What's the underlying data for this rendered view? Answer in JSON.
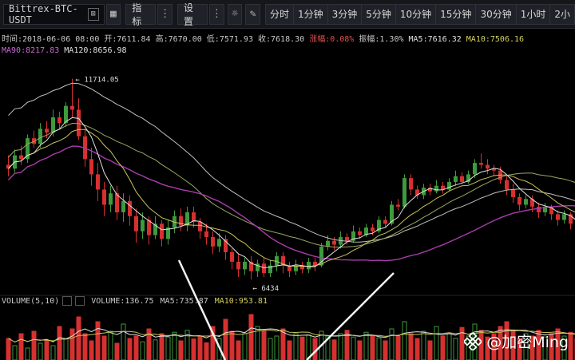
{
  "toolbar": {
    "symbol": "Bittrex-BTC-USDT",
    "indicator_label": "指标",
    "settings_label": "设置",
    "timeframes": [
      "分时",
      "1分钟",
      "3分钟",
      "5分钟",
      "10分钟",
      "15分钟",
      "30分钟",
      "1小时",
      "2小"
    ]
  },
  "info": {
    "time": "时间:2018-06-06 08:00",
    "open": "开:7611.84",
    "high": "高:7670.00",
    "low": "低:7571.93",
    "close": "收:7618.30",
    "change": "涨幅:0.08%",
    "amplitude": "振幅:1.30%",
    "ma5": "MA5:7616.32",
    "ma10": "MA10:7506.16",
    "ma90": "MA90:8217.83",
    "ma120": "MA120:8656.98"
  },
  "chart_data": {
    "type": "candlestick",
    "high_label": "11714.05",
    "low_label": "6434",
    "candles": [
      [
        9450,
        9350,
        9700,
        9150
      ],
      [
        9350,
        9700,
        9850,
        9250
      ],
      [
        9700,
        9600,
        9950,
        9450
      ],
      [
        9600,
        10150,
        10250,
        9500
      ],
      [
        10150,
        10000,
        10350,
        9900
      ],
      [
        10000,
        10400,
        10550,
        9900
      ],
      [
        10400,
        10300,
        10600,
        10150
      ],
      [
        10300,
        10700,
        10900,
        10200
      ],
      [
        10700,
        10550,
        10850,
        10400
      ],
      [
        10550,
        11000,
        11100,
        10450
      ],
      [
        11000,
        10900,
        11714,
        10700
      ],
      [
        10900,
        10200,
        11200,
        10100
      ],
      [
        10200,
        9600,
        10400,
        9400
      ],
      [
        9600,
        9200,
        9900,
        8900
      ],
      [
        9200,
        8800,
        9500,
        8500
      ],
      [
        8800,
        8400,
        9000,
        8100
      ],
      [
        8400,
        8700,
        8900,
        8200
      ],
      [
        8700,
        8200,
        8900,
        8000
      ],
      [
        8200,
        8500,
        8700,
        7950
      ],
      [
        8500,
        8100,
        8650,
        7850
      ],
      [
        8100,
        7700,
        8300,
        7400
      ],
      [
        7700,
        8000,
        8200,
        7500
      ],
      [
        8000,
        7600,
        8100,
        7350
      ],
      [
        7600,
        7900,
        8100,
        7500
      ],
      [
        7900,
        7500,
        8000,
        7300
      ],
      [
        7500,
        7800,
        8000,
        7350
      ],
      [
        7800,
        8100,
        8250,
        7650
      ],
      [
        8100,
        7850,
        8300,
        7700
      ],
      [
        7850,
        8200,
        8350,
        7700
      ],
      [
        8200,
        7950,
        8350,
        7800
      ],
      [
        7950,
        7700,
        8050,
        7500
      ],
      [
        7700,
        7550,
        7900,
        7350
      ],
      [
        7550,
        7300,
        7700,
        7100
      ],
      [
        7300,
        7500,
        7650,
        7150
      ],
      [
        7500,
        7150,
        7600,
        6950
      ],
      [
        7150,
        6900,
        7250,
        6700
      ],
      [
        6900,
        6700,
        7100,
        6500
      ],
      [
        6700,
        6900,
        7000,
        6550
      ],
      [
        6900,
        6650,
        7050,
        6434
      ],
      [
        6650,
        6850,
        6950,
        6500
      ],
      [
        6850,
        6600,
        7000,
        6500
      ],
      [
        6600,
        6800,
        6950,
        6500
      ],
      [
        6800,
        7050,
        7150,
        6650
      ],
      [
        7050,
        6800,
        7150,
        6600
      ],
      [
        6800,
        6650,
        6900,
        6500
      ],
      [
        6650,
        6800,
        6950,
        6550
      ],
      [
        6800,
        6700,
        6900,
        6600
      ],
      [
        6700,
        6900,
        7000,
        6600
      ],
      [
        6900,
        6800,
        7000,
        6650
      ],
      [
        6800,
        7300,
        7400,
        6750
      ],
      [
        7300,
        7450,
        7600,
        7200
      ],
      [
        7450,
        7350,
        7550,
        7200
      ],
      [
        7350,
        7550,
        7700,
        7250
      ],
      [
        7550,
        7450,
        7650,
        7350
      ],
      [
        7450,
        7700,
        7850,
        7400
      ],
      [
        7700,
        7600,
        7800,
        7500
      ],
      [
        7600,
        7800,
        7900,
        7550
      ],
      [
        7800,
        7700,
        7900,
        7600
      ],
      [
        7700,
        8000,
        8100,
        7650
      ],
      [
        8000,
        7900,
        8100,
        7800
      ],
      [
        7900,
        8400,
        8500,
        7850
      ],
      [
        8400,
        8350,
        8550,
        8250
      ],
      [
        8350,
        9100,
        9200,
        8300
      ],
      [
        9100,
        8800,
        9200,
        8650
      ],
      [
        8800,
        8650,
        8900,
        8550
      ],
      [
        8650,
        8850,
        8950,
        8550
      ],
      [
        8850,
        8750,
        8950,
        8650
      ],
      [
        8750,
        8900,
        9050,
        8700
      ],
      [
        8900,
        8800,
        9000,
        8700
      ],
      [
        8800,
        9000,
        9100,
        8750
      ],
      [
        9000,
        9150,
        9300,
        8900
      ],
      [
        9150,
        9000,
        9250,
        8950
      ],
      [
        9000,
        9200,
        9300,
        8950
      ],
      [
        9200,
        9500,
        9600,
        9100
      ],
      [
        9500,
        9450,
        9750,
        9350
      ],
      [
        9450,
        9350,
        9600,
        9200
      ],
      [
        9350,
        9300,
        9450,
        9150
      ],
      [
        9300,
        9050,
        9400,
        8950
      ],
      [
        9050,
        8800,
        9150,
        8650
      ],
      [
        8800,
        8600,
        8950,
        8450
      ],
      [
        8600,
        8400,
        8700,
        8250
      ],
      [
        8400,
        8550,
        8650,
        8300
      ],
      [
        8550,
        8350,
        8650,
        8200
      ],
      [
        8350,
        8200,
        8450,
        8050
      ],
      [
        8200,
        8350,
        8450,
        8100
      ],
      [
        8350,
        8150,
        8400,
        8000
      ],
      [
        8150,
        8000,
        8250,
        7850
      ],
      [
        8000,
        8150,
        8250,
        7900
      ],
      [
        8150,
        7900,
        8200,
        7750
      ],
      [
        7900,
        7700,
        7950,
        7600
      ]
    ],
    "volumes": [
      45,
      30,
      55,
      25,
      60,
      35,
      40,
      30,
      70,
      45,
      65,
      90,
      55,
      40,
      80,
      50,
      60,
      35,
      75,
      45,
      50,
      38,
      65,
      42,
      55,
      48,
      58,
      40,
      62,
      44,
      50,
      36,
      70,
      45,
      85,
      60,
      40,
      55,
      95,
      70,
      60,
      45,
      50,
      65,
      40,
      55,
      48,
      52,
      45,
      60,
      50,
      42,
      55,
      62,
      48,
      40,
      58,
      52,
      46,
      40,
      65,
      50,
      80,
      55,
      45,
      60,
      40,
      70,
      50,
      55,
      45,
      68,
      50,
      75,
      62,
      48,
      55,
      70,
      80,
      60,
      45,
      55,
      50,
      62,
      48,
      55,
      65,
      50,
      58,
      45
    ],
    "vol_info": {
      "label": "VOLUME(5,10)",
      "volume": "VOLUME:136.75",
      "ma5": "MA5:735.87",
      "ma10": "MA10:953.81"
    }
  },
  "watermark": "@加密Ming",
  "colors": {
    "up": "#3d9a3d",
    "down": "#d63030",
    "ma5": "#e0e0e0",
    "ma10": "#c9c35a",
    "ma30": "#9aa860",
    "ma60": "#c0c0c0",
    "ma90": "#aa3caa"
  }
}
